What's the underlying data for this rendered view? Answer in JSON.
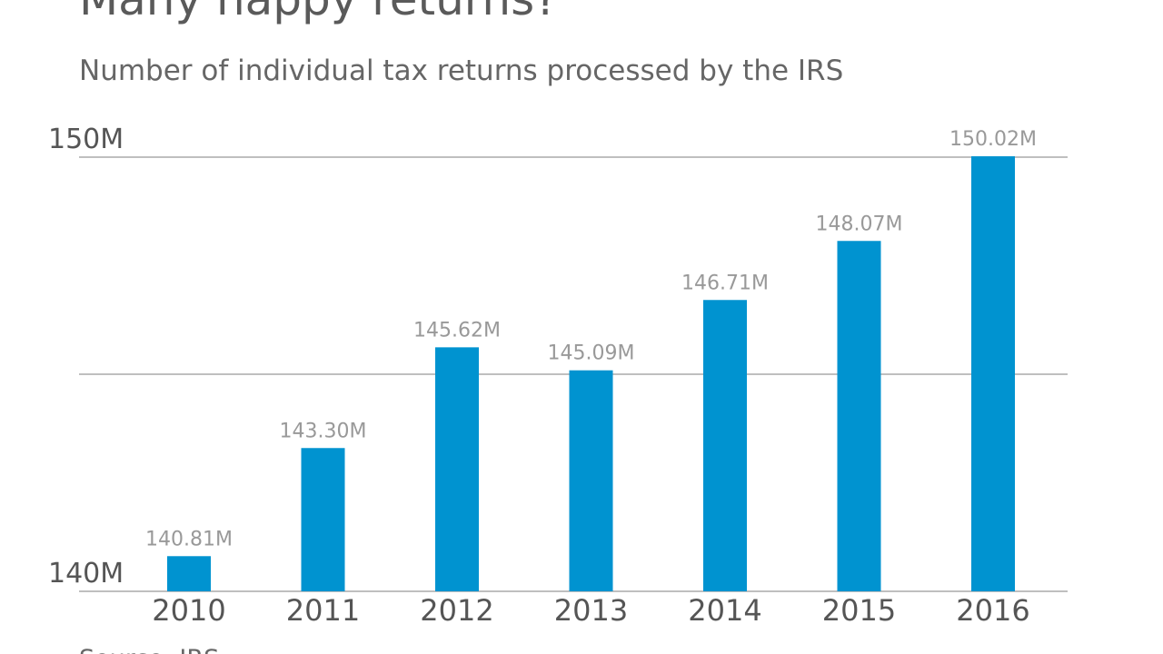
{
  "chart_data": {
    "type": "bar",
    "title": "Many happy returns?",
    "subtitle": "Number of individual tax returns processed by the IRS",
    "source": "Source: IRS",
    "categories": [
      "2010",
      "2011",
      "2012",
      "2013",
      "2014",
      "2015",
      "2016"
    ],
    "values": [
      140.81,
      143.3,
      145.62,
      145.09,
      146.71,
      148.07,
      150.02
    ],
    "value_labels": [
      "140.81M",
      "143.30M",
      "145.62M",
      "145.09M",
      "146.71M",
      "148.07M",
      "150.02M"
    ],
    "color": "#0093d0",
    "ylim": [
      140,
      150
    ],
    "yticks": [
      {
        "value": 140,
        "label": "140M"
      },
      {
        "value": 145,
        "label": null
      },
      {
        "value": 150,
        "label": "150M"
      }
    ],
    "grid": true
  }
}
